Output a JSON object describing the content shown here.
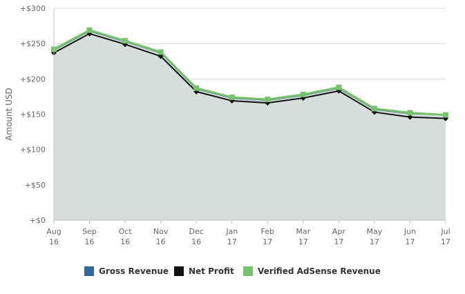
{
  "chart_data": {
    "type": "area",
    "ylabel": "Amount USD",
    "xlabel": "",
    "ylim": [
      0,
      300
    ],
    "y_ticks": [
      0,
      50,
      100,
      150,
      200,
      250,
      300
    ],
    "y_tick_labels": [
      "+$0",
      "+$50",
      "+$100",
      "+$150",
      "+$200",
      "+$250",
      "+$300"
    ],
    "categories": [
      [
        "Aug",
        "16"
      ],
      [
        "Sep",
        "16"
      ],
      [
        "Oct",
        "16"
      ],
      [
        "Nov",
        "16"
      ],
      [
        "Dec",
        "16"
      ],
      [
        "Jan",
        "17"
      ],
      [
        "Feb",
        "17"
      ],
      [
        "Mar",
        "17"
      ],
      [
        "Apr",
        "17"
      ],
      [
        "May",
        "17"
      ],
      [
        "Jun",
        "17"
      ],
      [
        "Jul",
        "17"
      ]
    ],
    "series": [
      {
        "name": "Gross Revenue",
        "color": "#336699",
        "values": [
          241,
          268,
          253,
          237,
          186,
          173,
          170,
          177,
          187,
          157,
          151,
          149
        ]
      },
      {
        "name": "Net Profit",
        "color": "#111111",
        "values": [
          237,
          264,
          249,
          232,
          182,
          169,
          166,
          173,
          183,
          153,
          146,
          144
        ]
      },
      {
        "name": "Verified AdSense Revenue",
        "color": "#77c36b",
        "values": [
          242,
          269,
          254,
          238,
          187,
          174,
          171,
          178,
          188,
          158,
          152,
          149
        ]
      }
    ],
    "grid": true,
    "legend_position": "bottom-center"
  }
}
